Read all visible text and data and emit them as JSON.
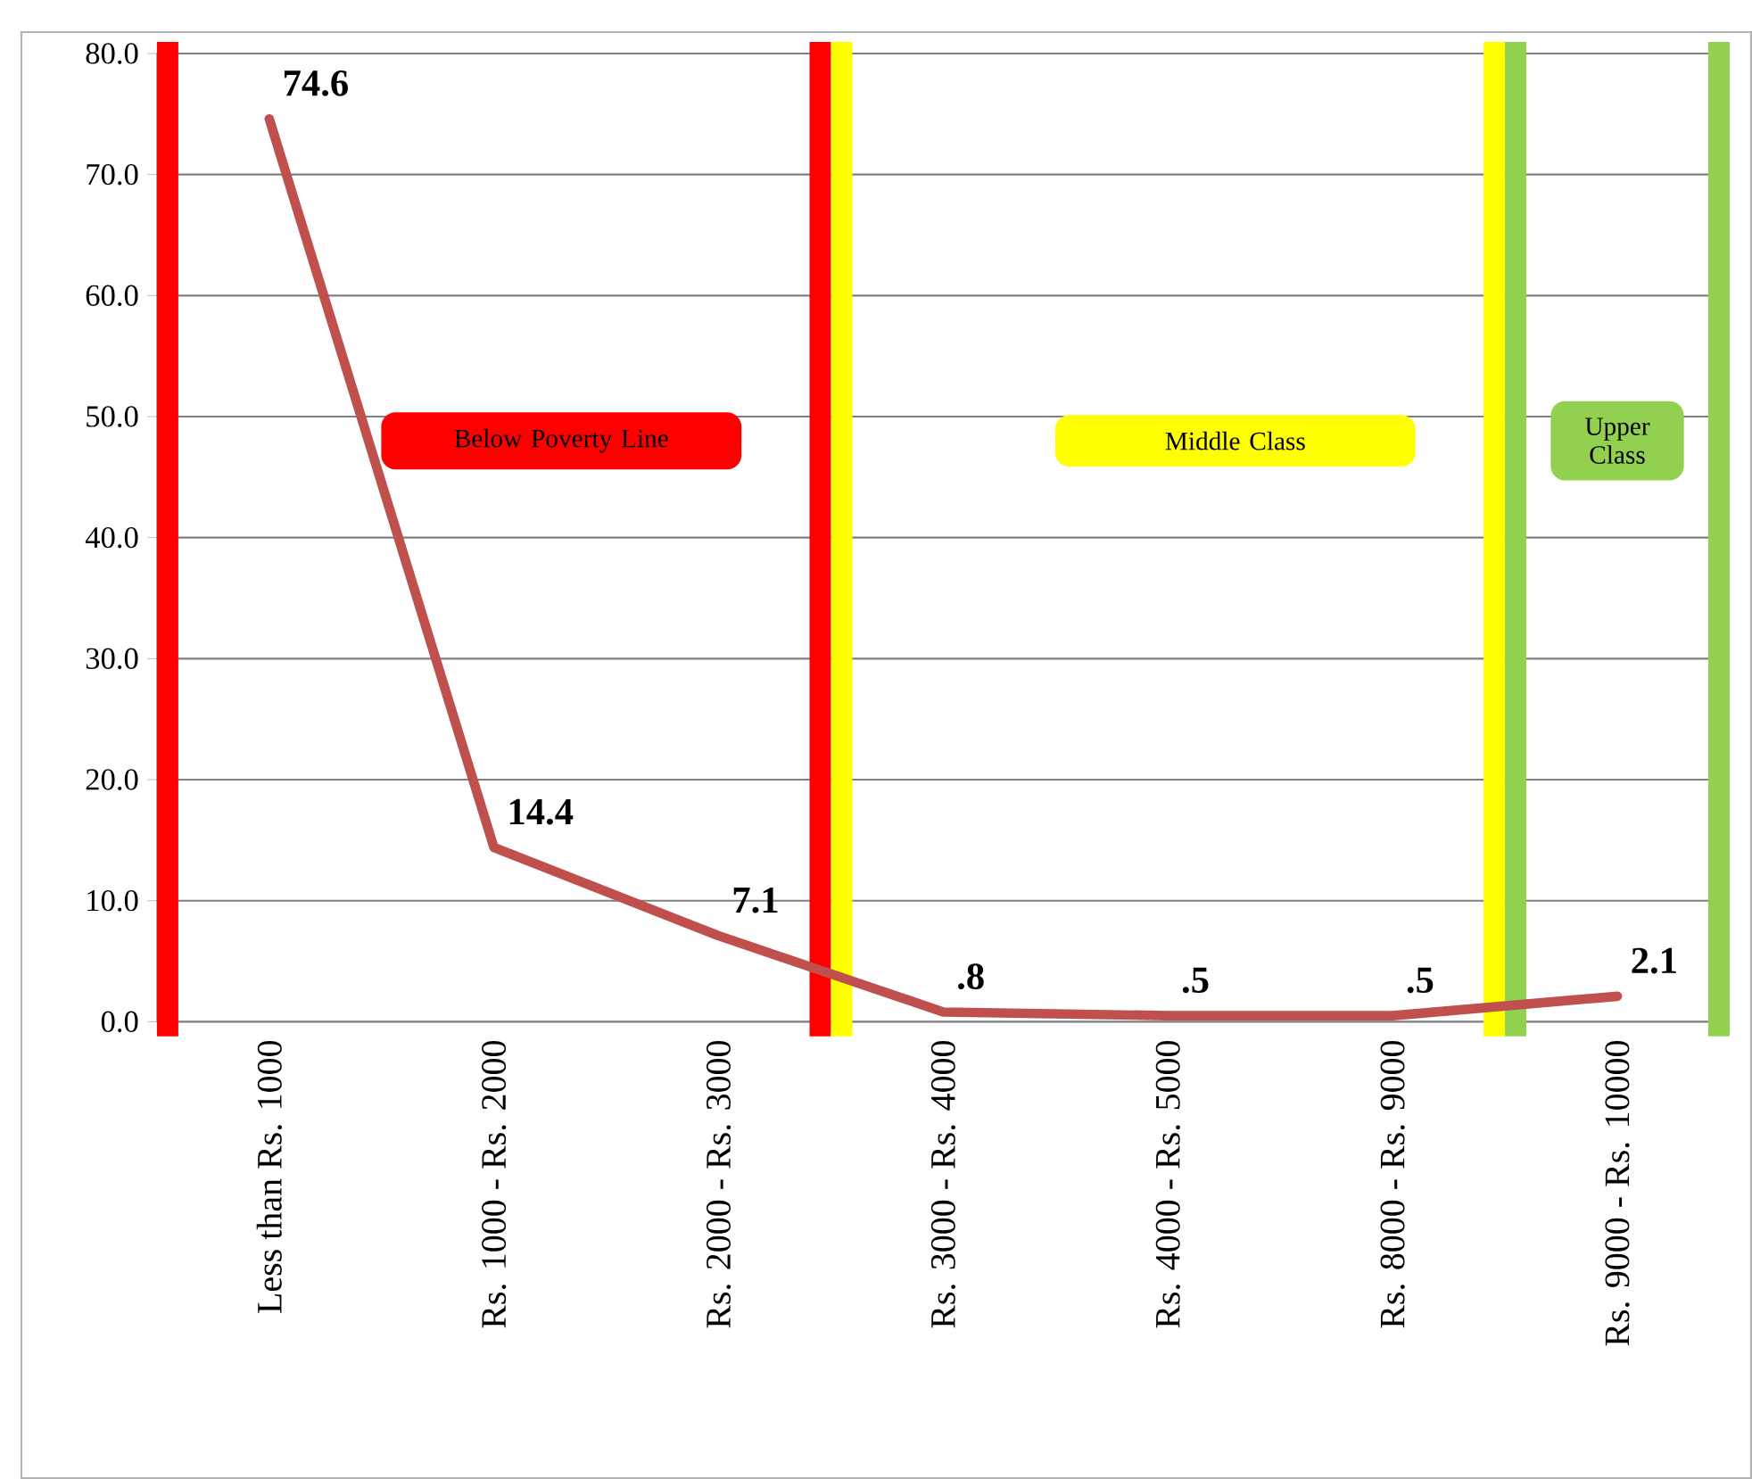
{
  "chart_data": {
    "type": "line",
    "categories": [
      "Less than Rs. 1000",
      "Rs. 1000 - Rs. 2000",
      "Rs. 2000 - Rs. 3000",
      "Rs. 3000 - Rs. 4000",
      "Rs. 4000 - Rs. 5000",
      "Rs. 8000 - Rs. 9000",
      "Rs. 9000 - Rs. 10000"
    ],
    "values": [
      74.6,
      14.4,
      7.1,
      0.8,
      0.5,
      0.5,
      2.1
    ],
    "value_labels": [
      "74.6",
      "14.4",
      "7.1",
      ".8",
      ".5",
      ".5",
      "2.1"
    ],
    "color": "#c0504d",
    "ylim": [
      0,
      80
    ],
    "yticks": [
      {
        "value": 0,
        "label": "0.0"
      },
      {
        "value": 10,
        "label": "10.0"
      },
      {
        "value": 20,
        "label": "20.0"
      },
      {
        "value": 30,
        "label": "30.0"
      },
      {
        "value": 40,
        "label": "40.0"
      },
      {
        "value": 50,
        "label": "50.0"
      },
      {
        "value": 60,
        "label": "60.0"
      },
      {
        "value": 70,
        "label": "70.0"
      },
      {
        "value": 80,
        "label": "80.0"
      }
    ],
    "grid": "y",
    "marker": "none",
    "line_style": "solid",
    "bands": [
      {
        "axis": "x",
        "from": "Less than Rs. 1000",
        "to": "Rs. 2000 - Rs. 3000",
        "label": "Below Poverty Line",
        "color": "#ff0000"
      },
      {
        "axis": "x",
        "from": "Rs. 3000 - Rs. 4000",
        "to": "Rs. 8000 - Rs. 9000",
        "label": "Middle Class",
        "color": "#ffff00"
      },
      {
        "axis": "x",
        "from": "Rs. 9000 - Rs. 10000",
        "to": "Rs. 9000 - Rs. 10000",
        "label": "Upper Class",
        "color": "#92d050"
      }
    ]
  }
}
